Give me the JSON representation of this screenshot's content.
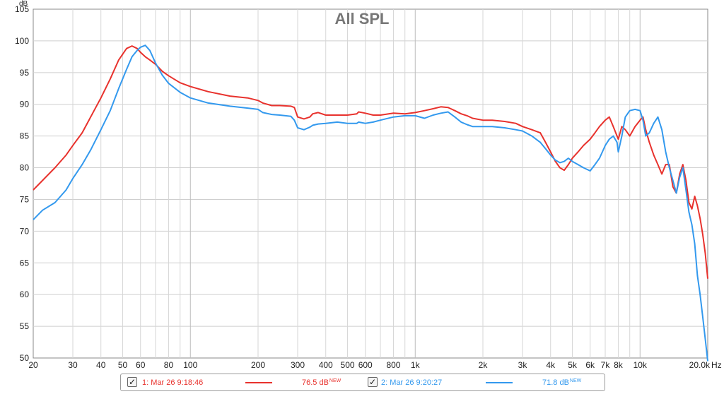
{
  "chart_data": {
    "type": "line",
    "title": "All SPL",
    "y_unit": "dB",
    "x_unit": "Hz",
    "xscale": "log",
    "xlim": [
      20,
      20000
    ],
    "ylim": [
      50,
      105
    ],
    "grid": true,
    "y_ticks": [
      "50",
      "55",
      "60",
      "65",
      "70",
      "75",
      "80",
      "85",
      "90",
      "95",
      "100",
      "105"
    ],
    "x_ticks": [
      {
        "f": 20,
        "label": "20"
      },
      {
        "f": 30,
        "label": "30"
      },
      {
        "f": 40,
        "label": "40"
      },
      {
        "f": 50,
        "label": "50"
      },
      {
        "f": 60,
        "label": "60"
      },
      {
        "f": 80,
        "label": "80"
      },
      {
        "f": 100,
        "label": "100"
      },
      {
        "f": 200,
        "label": "200"
      },
      {
        "f": 300,
        "label": "300"
      },
      {
        "f": 400,
        "label": "400"
      },
      {
        "f": 500,
        "label": "500"
      },
      {
        "f": 600,
        "label": "600"
      },
      {
        "f": 800,
        "label": "800"
      },
      {
        "f": 1000,
        "label": "1k"
      },
      {
        "f": 2000,
        "label": "2k"
      },
      {
        "f": 3000,
        "label": "3k"
      },
      {
        "f": 4000,
        "label": "4k"
      },
      {
        "f": 5000,
        "label": "5k"
      },
      {
        "f": 6000,
        "label": "6k"
      },
      {
        "f": 7000,
        "label": "7k"
      },
      {
        "f": 8000,
        "label": "8k"
      },
      {
        "f": 10000,
        "label": "10k"
      },
      {
        "f": 20000,
        "label": "20.0k"
      }
    ],
    "series": [
      {
        "name": "1: Mar 26 9:18:46",
        "color": "#e8322d",
        "x": [
          20,
          22,
          25,
          28,
          30,
          33,
          36,
          40,
          44,
          48,
          52,
          55,
          58,
          60,
          63,
          66,
          70,
          75,
          80,
          90,
          100,
          120,
          150,
          180,
          200,
          210,
          230,
          250,
          280,
          290,
          300,
          320,
          340,
          350,
          370,
          400,
          450,
          500,
          550,
          560,
          600,
          650,
          700,
          800,
          900,
          1000,
          1100,
          1200,
          1300,
          1400,
          1500,
          1600,
          1700,
          1800,
          2000,
          2200,
          2500,
          2800,
          3000,
          3300,
          3600,
          3800,
          4000,
          4200,
          4400,
          4600,
          4800,
          5000,
          5300,
          5600,
          6000,
          6300,
          6600,
          7000,
          7300,
          7600,
          7900,
          8000,
          8300,
          8600,
          9000,
          9500,
          10000,
          10300,
          10600,
          11000,
          11500,
          12000,
          12500,
          13000,
          13500,
          14000,
          14500,
          15000,
          15500,
          16000,
          16500,
          17000,
          17500,
          18000,
          18500,
          19000,
          19500,
          20000
        ],
        "values": [
          76.5,
          78.0,
          80.0,
          82.0,
          83.5,
          85.5,
          88.0,
          91.0,
          94.0,
          97.0,
          98.8,
          99.2,
          98.8,
          98.2,
          97.5,
          97.0,
          96.3,
          95.2,
          94.5,
          93.4,
          92.8,
          92.0,
          91.3,
          91.0,
          90.6,
          90.2,
          89.8,
          89.8,
          89.7,
          89.5,
          88.0,
          87.7,
          88.0,
          88.5,
          88.7,
          88.3,
          88.3,
          88.3,
          88.5,
          88.8,
          88.6,
          88.3,
          88.3,
          88.6,
          88.5,
          88.7,
          89.0,
          89.3,
          89.6,
          89.5,
          89.0,
          88.5,
          88.2,
          87.8,
          87.5,
          87.5,
          87.3,
          87.0,
          86.5,
          86.0,
          85.5,
          84.0,
          82.5,
          81.0,
          80.0,
          79.6,
          80.5,
          81.5,
          82.5,
          83.5,
          84.5,
          85.5,
          86.5,
          87.5,
          88.0,
          86.5,
          85.0,
          84.5,
          86.5,
          86.0,
          85.0,
          86.5,
          87.5,
          88.0,
          86.0,
          84.0,
          82.0,
          80.5,
          79.0,
          80.5,
          80.5,
          77.0,
          76.0,
          79.0,
          80.5,
          78.0,
          74.5,
          73.5,
          75.5,
          74.0,
          72.0,
          69.5,
          66.5,
          62.5
        ]
      },
      {
        "name": "2: Mar 26 9:20:27",
        "color": "#3399ee",
        "x": [
          20,
          22,
          25,
          28,
          30,
          33,
          36,
          40,
          44,
          48,
          52,
          55,
          58,
          60,
          63,
          66,
          70,
          75,
          80,
          90,
          100,
          120,
          150,
          180,
          200,
          210,
          230,
          250,
          280,
          290,
          300,
          320,
          340,
          350,
          370,
          400,
          450,
          500,
          550,
          560,
          600,
          650,
          700,
          800,
          900,
          1000,
          1100,
          1200,
          1300,
          1400,
          1500,
          1600,
          1700,
          1800,
          2000,
          2200,
          2500,
          2800,
          3000,
          3300,
          3600,
          3800,
          4000,
          4200,
          4400,
          4600,
          4800,
          5000,
          5300,
          5600,
          6000,
          6300,
          6600,
          7000,
          7300,
          7600,
          7900,
          8000,
          8300,
          8600,
          9000,
          9500,
          10000,
          10300,
          10600,
          11000,
          11500,
          12000,
          12500,
          13000,
          13500,
          14000,
          14500,
          15000,
          15500,
          16000,
          16500,
          17000,
          17500,
          18000,
          18500,
          19000,
          19500,
          20000
        ],
        "values": [
          71.8,
          73.3,
          74.5,
          76.5,
          78.3,
          80.5,
          82.8,
          86.0,
          89.0,
          92.5,
          95.5,
          97.5,
          98.5,
          99.0,
          99.3,
          98.5,
          96.5,
          94.6,
          93.3,
          91.9,
          91.0,
          90.2,
          89.7,
          89.4,
          89.2,
          88.7,
          88.4,
          88.3,
          88.1,
          87.5,
          86.3,
          86.0,
          86.4,
          86.7,
          86.9,
          87.0,
          87.2,
          87.0,
          87.0,
          87.2,
          87.0,
          87.2,
          87.5,
          88.0,
          88.2,
          88.2,
          87.8,
          88.3,
          88.6,
          88.8,
          88.0,
          87.2,
          86.8,
          86.5,
          86.5,
          86.5,
          86.3,
          86.0,
          85.8,
          85.0,
          84.0,
          83.0,
          82.0,
          81.2,
          80.8,
          81.0,
          81.5,
          81.0,
          80.5,
          80.0,
          79.5,
          80.5,
          81.5,
          83.5,
          84.5,
          85.0,
          84.0,
          82.5,
          85.0,
          88.0,
          89.0,
          89.2,
          89.0,
          87.5,
          85.0,
          85.5,
          87.0,
          88.0,
          86.0,
          82.5,
          80.0,
          78.0,
          76.0,
          78.5,
          80.0,
          76.5,
          73.0,
          71.0,
          68.0,
          63.0,
          60.0,
          56.5,
          53.0,
          49.5
        ]
      }
    ]
  },
  "legend": {
    "checkmark": "✓",
    "items": [
      {
        "label": "1: Mar 26 9:18:46",
        "level": "76.5 dB",
        "badge": "NEW",
        "color": "#e8322d"
      },
      {
        "label": "2: Mar 26 9:20:27",
        "level": "71.8 dB",
        "badge": "NEW",
        "color": "#3399ee"
      }
    ]
  }
}
